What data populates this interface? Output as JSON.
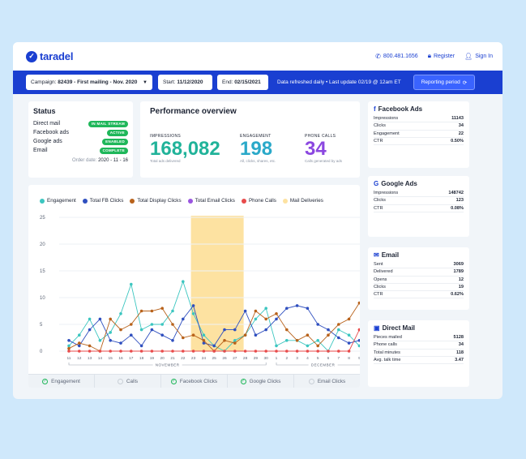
{
  "header": {
    "logo_text": "taradel",
    "phone": "800.481.1656",
    "register": "Register",
    "signin": "Sign In"
  },
  "toolbar": {
    "campaign_label": "Campaign:",
    "campaign_value": "82439 - First mailing - Nov. 2020",
    "start_label": "Start:",
    "start_value": "11/12/2020",
    "end_label": "End:",
    "end_value": "02/15/2021",
    "refresh_text": "Data refreshed daily • Last update 02/19 @ 12am ET",
    "reporting_button": "Reporting period"
  },
  "status": {
    "title": "Status",
    "rows": [
      {
        "label": "Direct mail",
        "badge": "IN MAIL STREAM"
      },
      {
        "label": "Facebook ads",
        "badge": "ACTIVE"
      },
      {
        "label": "Google ads",
        "badge": "ENABLED"
      },
      {
        "label": "Email",
        "badge": "COMPLETE"
      }
    ],
    "order_label": "Order date:",
    "order_value": "2020 - 11 - 16"
  },
  "performance": {
    "title": "Performance overview",
    "kpis": [
      {
        "label": "IMPRESSIONS",
        "value": "168,082",
        "sub": "Total ads delivered",
        "color": "#21b39a"
      },
      {
        "label": "ENGAGEMENT",
        "value": "198",
        "sub": "All, clicks, shares, etc.",
        "color": "#2aa9c9"
      },
      {
        "label": "PHONE CALLS",
        "value": "34",
        "sub": "Calls generated by ads",
        "color": "#8b47e0"
      }
    ]
  },
  "chart_data": {
    "type": "line",
    "legend": [
      {
        "name": "Engagement",
        "color": "#3cc6c0"
      },
      {
        "name": "Total FB Clicks",
        "color": "#2f4fbf"
      },
      {
        "name": "Total Display Clicks",
        "color": "#b8621b"
      },
      {
        "name": "Total Email Clicks",
        "color": "#9a55e0"
      },
      {
        "name": "Phone Calls",
        "color": "#e84b4b"
      },
      {
        "name": "Mail Deliveries",
        "color": "#fde2a1"
      }
    ],
    "y_ticks": [
      "0",
      "5",
      "10",
      "15",
      "20",
      "25"
    ],
    "ylim": [
      0,
      25
    ],
    "x_ticks": [
      "11",
      "12",
      "13",
      "14",
      "15",
      "16",
      "17",
      "18",
      "19",
      "20",
      "21",
      "22",
      "23",
      "24",
      "25",
      "26",
      "27",
      "28",
      "29",
      "30",
      "1",
      "2",
      "3",
      "4",
      "5",
      "6",
      "7",
      "8",
      "9",
      "10"
    ],
    "month_labels": [
      "NOVEMBER",
      "DECEMBER"
    ],
    "mail_band": {
      "from": "23",
      "to": "28"
    },
    "series": [
      {
        "name": "Engagement",
        "color": "#3cc6c0",
        "values": [
          1,
          3,
          6,
          2,
          3.5,
          7,
          12.5,
          4,
          5,
          5,
          7.5,
          13,
          7,
          3,
          1,
          0,
          2,
          3,
          6,
          8,
          1,
          2,
          2,
          1,
          2,
          0,
          4,
          3,
          1,
          2
        ]
      },
      {
        "name": "Total FB Clicks",
        "color": "#2f4fbf",
        "values": [
          2,
          1,
          4,
          6,
          2,
          1.5,
          3,
          1,
          4,
          3,
          2,
          6,
          8.5,
          1.5,
          1,
          4,
          4,
          7.5,
          3,
          4,
          6,
          8,
          8.5,
          8,
          5,
          4,
          2.5,
          1.5,
          2,
          0
        ]
      },
      {
        "name": "Total Display Clicks",
        "color": "#b8621b",
        "values": [
          0.5,
          1.5,
          1,
          0,
          6,
          4,
          5,
          7.5,
          7.5,
          8,
          5,
          2.5,
          3,
          2,
          0,
          2,
          1.5,
          3,
          7.5,
          6,
          7,
          4,
          2,
          3,
          1,
          3,
          5,
          6,
          9,
          5
        ]
      },
      {
        "name": "Phone Calls",
        "color": "#e84b4b",
        "values": [
          0,
          0,
          0,
          0,
          0,
          0,
          0,
          0,
          0,
          0,
          0,
          0,
          0,
          0,
          0,
          0,
          0,
          0,
          0,
          0,
          0,
          0,
          0,
          0,
          0,
          0,
          0,
          0,
          4,
          0
        ]
      }
    ]
  },
  "toggles": [
    {
      "label": "Engagement",
      "on": true
    },
    {
      "label": "Calls",
      "on": false
    },
    {
      "label": "Facebook Clicks",
      "on": true
    },
    {
      "label": "Google Clicks",
      "on": true
    },
    {
      "label": "Email Clicks",
      "on": false
    }
  ],
  "facebook": {
    "title": "Facebook Ads",
    "rows": [
      {
        "label": "Impressions",
        "value": "11143"
      },
      {
        "label": "Clicks",
        "value": "34"
      },
      {
        "label": "Engagement",
        "value": "22"
      },
      {
        "label": "CTR",
        "value": "0.50%"
      }
    ]
  },
  "google": {
    "title": "Google Ads",
    "rows": [
      {
        "label": "Impressions",
        "value": "148742"
      },
      {
        "label": "Clicks",
        "value": "123"
      },
      {
        "label": "CTR",
        "value": "0.08%"
      }
    ]
  },
  "email": {
    "title": "Email",
    "rows": [
      {
        "label": "Sent",
        "value": "3069"
      },
      {
        "label": "Delivered",
        "value": "1789"
      },
      {
        "label": "Opens",
        "value": "12"
      },
      {
        "label": "Clicks",
        "value": "19"
      },
      {
        "label": "CTR",
        "value": "0.62%"
      }
    ]
  },
  "directmail": {
    "title": "Direct Mail",
    "rows": [
      {
        "label": "Pieces mailed",
        "value": "5128"
      },
      {
        "label": "Phone calls",
        "value": "34"
      },
      {
        "label": "Total minutes",
        "value": "118"
      },
      {
        "label": "Avg. talk time",
        "value": "3.47"
      }
    ]
  }
}
